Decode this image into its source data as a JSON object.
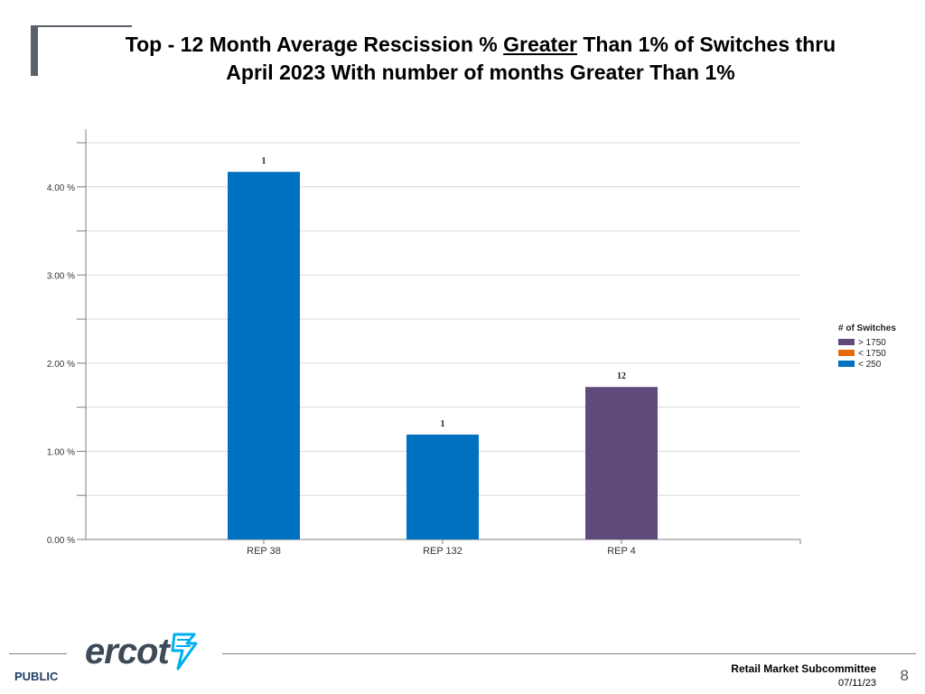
{
  "slide": {
    "title_part1": "Top - 12 Month Average Rescission % ",
    "title_underlined": "Greater",
    "title_part2": " Than 1% of Switches thru",
    "title_line2": "April 2023 With number of months Greater Than 1%"
  },
  "chart_data": {
    "type": "bar",
    "categories": [
      "REP 38",
      "REP 132",
      "REP 4"
    ],
    "values": [
      4.17,
      1.19,
      1.73
    ],
    "bar_colors": [
      "#0070c0",
      "#0070c0",
      "#604a7b"
    ],
    "bar_labels": [
      "1",
      "1",
      "12"
    ],
    "ylim": [
      0,
      4.5
    ],
    "yticks": [
      0,
      1,
      2,
      3,
      4
    ],
    "ytick_labels": [
      "0.00 %",
      "1.00 %",
      "2.00 %",
      "3.00 %",
      "4.00 %"
    ],
    "grid": true,
    "legend": {
      "title": "# of Switches",
      "position": "right",
      "entries": [
        {
          "label": "> 1750",
          "color": "#604a7b"
        },
        {
          "label": "< 1750",
          "color": "#e36c09"
        },
        {
          "label": "< 250",
          "color": "#0070c0"
        }
      ]
    }
  },
  "footer": {
    "public": "PUBLIC",
    "logo": "ercot",
    "committee": "Retail Market Subcommittee",
    "date": "07/11/23",
    "page": "8"
  }
}
